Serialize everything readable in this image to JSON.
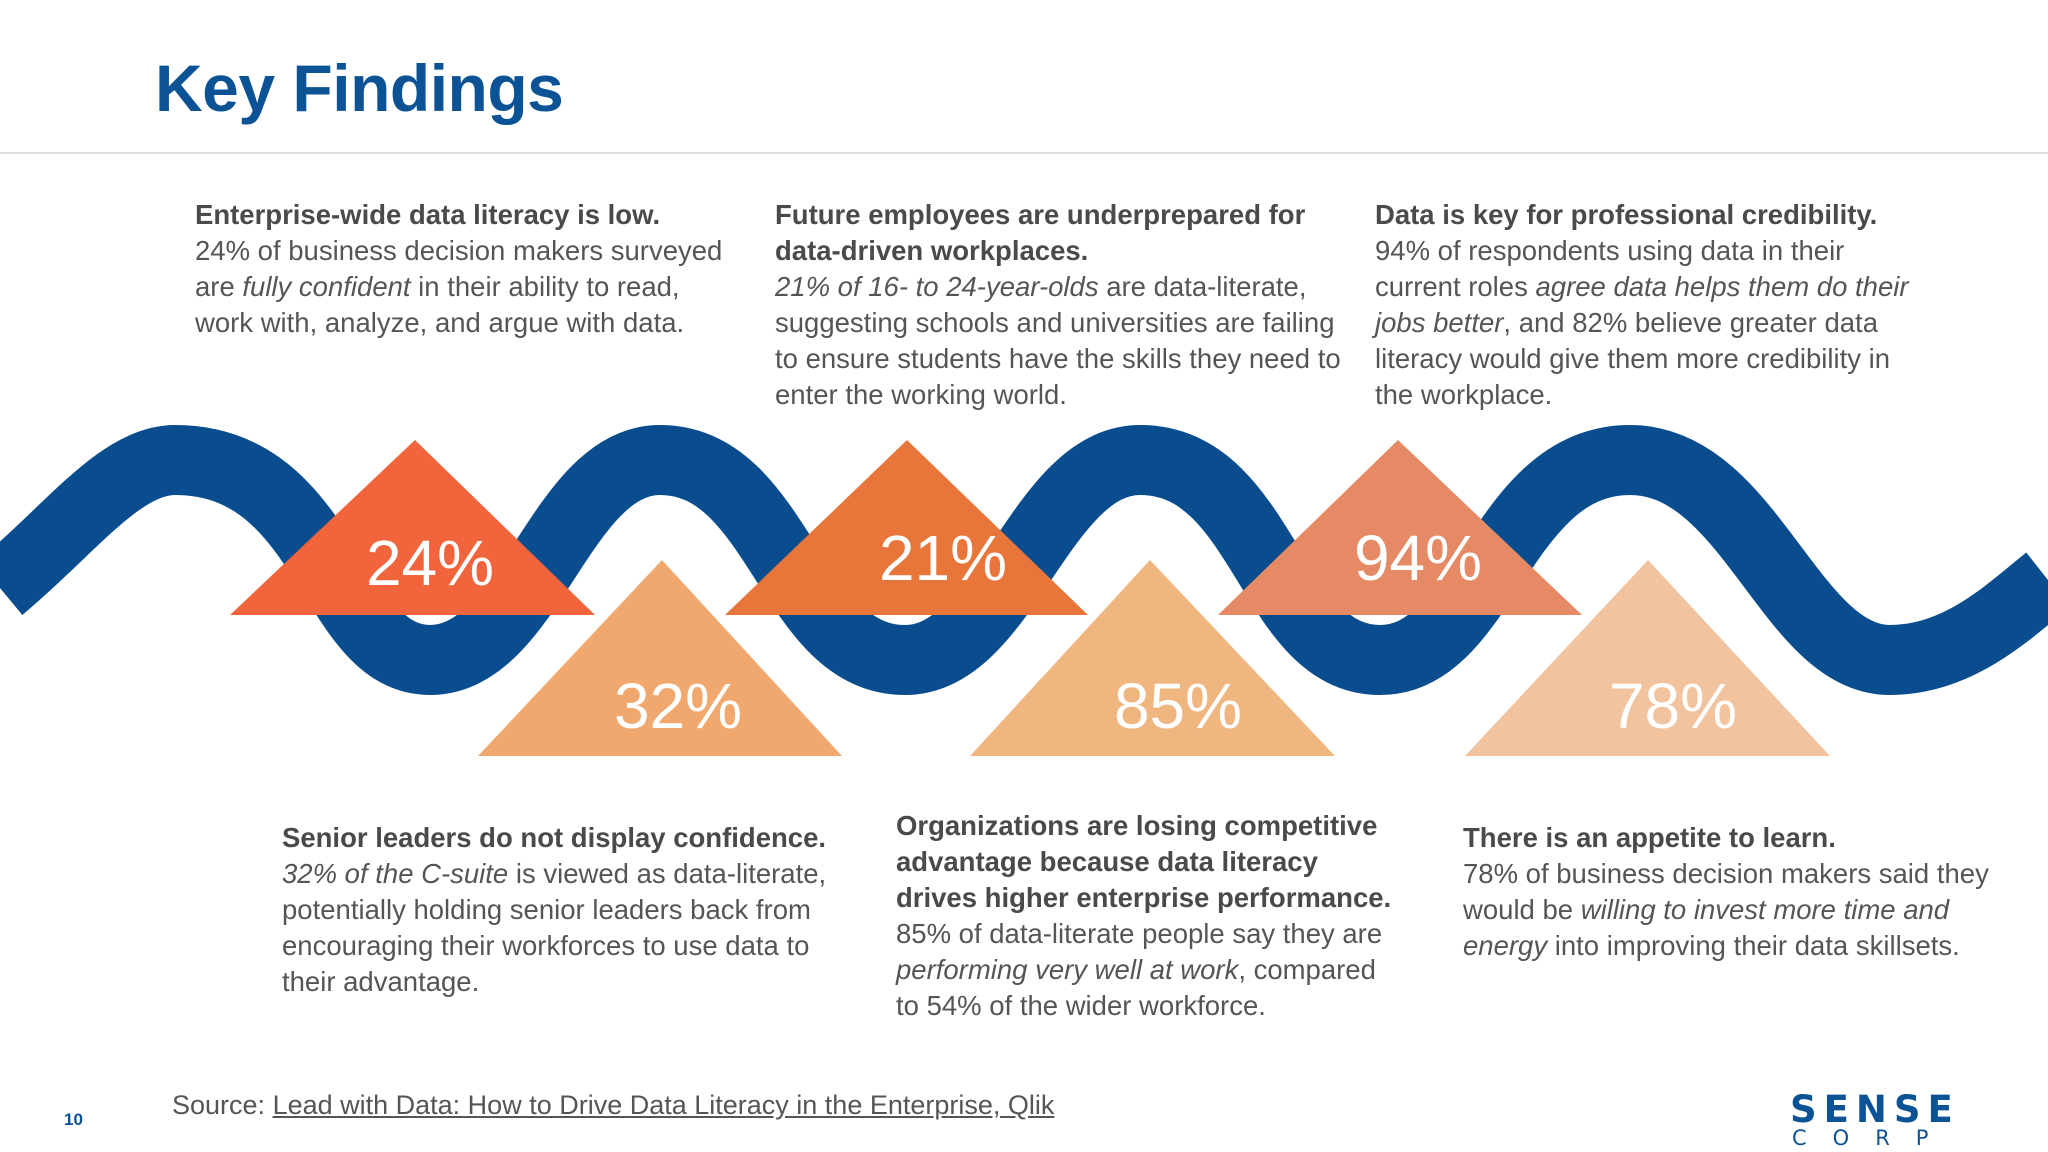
{
  "title": "Key Findings",
  "colors": {
    "title": "#0b5394",
    "wave": "#0a4d8f",
    "tri_24": "#f2643c",
    "tri_21": "#e8763a",
    "tri_94": "#e58a65",
    "tri_32": "#f0a86e",
    "tri_85": "#f0b680",
    "tri_78": "#f1c39f"
  },
  "stats": {
    "s24": "24%",
    "s21": "21%",
    "s94": "94%",
    "s32": "32%",
    "s85": "85%",
    "s78": "78%"
  },
  "findings": {
    "f1": {
      "heading": "Enterprise-wide data literacy is low.",
      "t1": "24% of business decision makers surveyed are ",
      "em1": "fully confident",
      "t2": " in their ability to read, work with, analyze, and argue with data."
    },
    "f2": {
      "heading": "Future employees are underprepared for data-driven workplaces.",
      "em1": "21% of 16- to 24-year-olds",
      "t1": " are data-literate, suggesting schools and universities are failing to ensure students have the skills they need to enter the working world."
    },
    "f3": {
      "heading": "Data is key for professional credibility.",
      "t1": "94% of respondents using data in their current roles ",
      "em1": "agree data helps them do their jobs better",
      "t2": ", and 82% believe greater data literacy would give them more credibility in the workplace."
    },
    "f4": {
      "heading": "Senior leaders do not display confidence.",
      "em1": "32% of the C-suite",
      "t1": " is viewed as data-literate, potentially holding senior leaders back from encouraging their workforces to use data to their advantage."
    },
    "f5": {
      "heading": "Organizations are losing competitive advantage because data literacy drives higher enterprise performance.",
      "t1": "85% of data-literate people say they are ",
      "em1": "performing very well at work",
      "t2": ", compared to 54% of the wider workforce."
    },
    "f6": {
      "heading": "There is an appetite to learn.",
      "t1": "78% of business decision makers said they would be ",
      "em1": "willing to invest more time and energy",
      "t2": " into improving their data skillsets."
    }
  },
  "footer": {
    "source_label": "Source: ",
    "source_link": "Lead with Data: How to Drive Data Literacy in the Enterprise, Qlik",
    "page_number": "10",
    "logo_top": "SENSE",
    "logo_bottom": "CORP"
  }
}
